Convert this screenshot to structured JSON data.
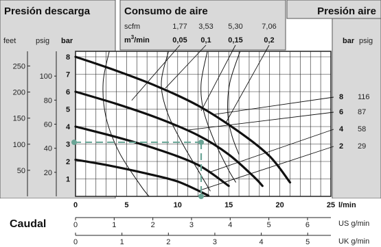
{
  "headers": {
    "left": "Presión descarga",
    "middle": "Consumo de aire",
    "right": "Presión aire"
  },
  "unit_labels": {
    "feet": "feet",
    "psig": "psig",
    "bar": "bar",
    "right_bar": "bar",
    "right_psig": "psig",
    "scfm": "scfm",
    "m3min_prefix": "m",
    "m3min_sup": "3",
    "m3min_suffix": "/min",
    "lmin": "l/min",
    "usgmin": "US g/min",
    "ukgmin": "UK g/min",
    "caudal": "Caudal"
  },
  "colors": {
    "panel": "#d9d9d9",
    "grid": "#222222",
    "curve": "#111111",
    "consumption": "#111111",
    "guide": "#6aa596"
  },
  "chart_data": {
    "type": "line",
    "xlabel": "l/min",
    "ylabel": "bar",
    "xlim": [
      0,
      25
    ],
    "ylim": [
      0,
      8
    ],
    "x_ticks": [
      0,
      5,
      10,
      15,
      20,
      25
    ],
    "y_ticks": [
      1,
      2,
      3,
      4,
      5,
      6,
      7,
      8
    ],
    "feet_ticks": [
      50,
      100,
      150,
      200,
      250
    ],
    "psig_ticks": [
      20,
      40,
      60,
      80,
      100
    ],
    "us_gpm_ticks": [
      0,
      1,
      2,
      3,
      4,
      5,
      6
    ],
    "uk_gpm_ticks": [
      0,
      1,
      2,
      3,
      4,
      5
    ],
    "air_consumption": {
      "scfm": [
        "1,77",
        "3,53",
        "5,30",
        "7,06"
      ],
      "m3min": [
        "0,05",
        "0,1",
        "0,15",
        "0,2"
      ]
    },
    "series": [
      {
        "name": "8",
        "psig": "116",
        "points": [
          [
            0,
            8
          ],
          [
            4,
            7.2
          ],
          [
            8,
            6.3
          ],
          [
            12,
            5.2
          ],
          [
            16,
            3.7
          ],
          [
            19,
            2.3
          ],
          [
            21,
            0.8
          ]
        ]
      },
      {
        "name": "6",
        "psig": "87",
        "points": [
          [
            0,
            6
          ],
          [
            4,
            5.3
          ],
          [
            8,
            4.5
          ],
          [
            12,
            3.5
          ],
          [
            15,
            2.4
          ],
          [
            17.5,
            1.1
          ],
          [
            18.3,
            0.6
          ]
        ]
      },
      {
        "name": "4",
        "psig": "58",
        "points": [
          [
            0,
            4
          ],
          [
            4,
            3.4
          ],
          [
            8,
            2.7
          ],
          [
            12,
            1.8
          ],
          [
            15,
            0.6
          ]
        ]
      },
      {
        "name": "2",
        "psig": "29",
        "points": [
          [
            0,
            2.1
          ],
          [
            3,
            1.8
          ],
          [
            7,
            1.3
          ],
          [
            10,
            0.85
          ],
          [
            13,
            0.05
          ]
        ]
      }
    ],
    "consumption_curves": [
      {
        "value": "0,05",
        "points": [
          [
            3.3,
            8.3
          ],
          [
            2.7,
            6.5
          ],
          [
            3.0,
            4.5
          ],
          [
            4.3,
            2.5
          ],
          [
            6.4,
            0.6
          ],
          [
            7.2,
            0
          ]
        ]
      },
      {
        "value": "0,1",
        "points": [
          [
            9.1,
            8.3
          ],
          [
            8.4,
            6.5
          ],
          [
            9.0,
            4.8
          ],
          [
            10.5,
            3.0
          ],
          [
            12.3,
            1.2
          ],
          [
            13.2,
            0.3
          ]
        ]
      },
      {
        "value": "0,15",
        "points": [
          [
            12.9,
            8.3
          ],
          [
            12.3,
            6.5
          ],
          [
            12.5,
            5.0
          ],
          [
            13.5,
            3.3
          ],
          [
            14.9,
            1.6
          ],
          [
            15.7,
            0.8
          ]
        ]
      },
      {
        "value": "0,2",
        "points": [
          [
            16.1,
            8.3
          ],
          [
            15.1,
            6.5
          ],
          [
            14.9,
            4.8
          ],
          [
            15.3,
            3.5
          ],
          [
            16.0,
            2.4
          ]
        ]
      }
    ],
    "example": {
      "flow": 12.3,
      "pressure": 3.1
    }
  }
}
